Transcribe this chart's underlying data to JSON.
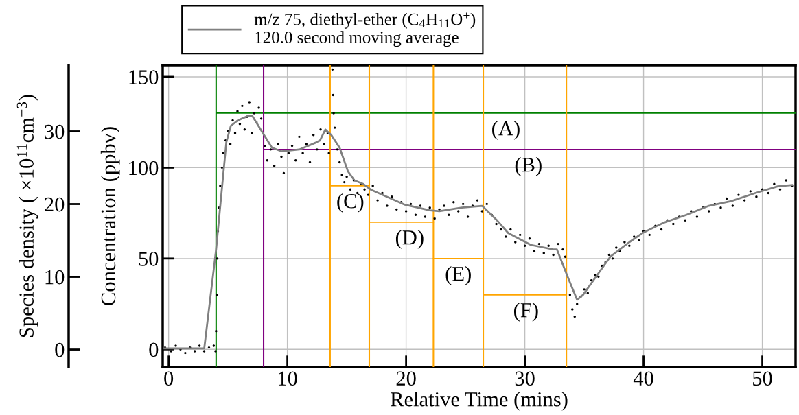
{
  "chart_data": {
    "type": "line",
    "xlabel": "Relative Time (mins)",
    "ylabel": "Concentration (ppbv)",
    "y2label": "Species density ( ×10$^{11}$cm$^{−3}$)",
    "xlim": [
      -0.5,
      52.8
    ],
    "xticks": [
      0,
      10,
      20,
      30,
      40,
      50
    ],
    "ylim": [
      -9.7,
      156.4
    ],
    "yticks": [
      0,
      50,
      100,
      150
    ],
    "y2lim": [
      -2.4,
      39.1
    ],
    "y2ticks": [
      0,
      10,
      20,
      30
    ],
    "grid": true,
    "legend": "top left",
    "series": [
      {
        "type": "scatter",
        "color": "#000000",
        "marker": "circle",
        "x": [
          -0.3,
          0.2,
          0.6,
          1.0,
          1.4,
          1.8,
          2.2,
          2.6,
          3.0,
          3.4,
          3.8,
          3.95,
          4.0,
          4.05,
          4.1,
          4.15,
          4.25,
          4.35,
          4.5,
          4.6,
          4.8,
          5.0,
          5.2,
          5.4,
          5.6,
          5.8,
          6.0,
          6.2,
          6.4,
          6.6,
          6.8,
          7.0,
          7.2,
          7.4,
          7.6,
          7.8,
          8.1,
          8.3,
          8.6,
          8.9,
          9.2,
          9.5,
          9.7,
          10.1,
          10.4,
          10.7,
          11.0,
          11.3,
          11.6,
          11.9,
          12.2,
          12.5,
          12.8,
          13.1,
          13.4,
          13.5,
          13.8,
          13.85,
          13.9,
          14.0,
          14.2,
          14.4,
          14.6,
          14.8,
          15.0,
          15.3,
          15.6,
          15.9,
          16.2,
          16.5,
          16.8,
          17.2,
          17.6,
          18.0,
          18.4,
          18.8,
          19.2,
          19.6,
          20.0,
          20.4,
          20.8,
          21.2,
          21.6,
          22.0,
          22.4,
          22.8,
          23.2,
          23.6,
          24.0,
          24.4,
          24.8,
          25.2,
          25.6,
          26.0,
          26.4,
          26.8,
          27.2,
          27.6,
          28.0,
          28.4,
          28.8,
          29.2,
          29.6,
          30.0,
          30.4,
          30.8,
          31.2,
          31.6,
          32.0,
          32.4,
          32.8,
          33.2,
          33.4,
          33.8,
          34.0,
          34.2,
          34.4,
          34.7,
          35.0,
          35.3,
          35.6,
          35.9,
          36.2,
          36.5,
          36.8,
          37.1,
          37.4,
          37.7,
          38.0,
          38.4,
          38.8,
          39.2,
          39.6,
          40.0,
          40.5,
          41.0,
          41.5,
          42.0,
          42.5,
          43.0,
          43.5,
          44.0,
          44.5,
          45.0,
          45.5,
          46.0,
          46.5,
          47.0,
          47.5,
          48.0,
          48.5,
          49.0,
          49.5,
          50.0,
          50.5,
          51.0,
          51.5,
          52.0,
          52.5
        ],
        "values": [
          1,
          -1,
          2,
          0,
          -2,
          1,
          -1,
          2,
          -1,
          1,
          2,
          -1,
          10,
          30,
          50,
          65,
          78,
          90,
          100,
          108,
          115,
          120,
          113,
          126,
          119,
          131,
          124,
          134,
          121,
          128,
          136,
          119,
          130,
          125,
          133,
          127,
          112,
          104,
          110,
          101,
          113,
          106,
          97,
          108,
          112,
          104,
          117,
          108,
          113,
          103,
          118,
          110,
          121,
          113,
          119,
          108,
          154,
          140,
          130,
          122,
          110,
          103,
          96,
          92,
          95,
          88,
          93,
          86,
          91,
          88,
          85,
          90,
          82,
          86,
          79,
          84,
          77,
          81,
          76,
          80,
          74,
          79,
          73,
          78,
          72,
          77,
          79,
          74,
          81,
          76,
          80,
          73,
          79,
          82,
          76,
          80,
          74,
          69,
          66,
          62,
          66,
          59,
          63,
          57,
          61,
          54,
          58,
          53,
          57,
          52,
          58,
          55,
          51,
          30,
          22,
          18,
          25,
          29,
          33,
          31,
          38,
          41,
          40,
          46,
          48,
          52,
          50,
          56,
          54,
          59,
          57,
          62,
          60,
          65,
          63,
          68,
          66,
          71,
          69,
          73,
          71,
          76,
          73,
          78,
          76,
          80,
          78,
          83,
          79,
          85,
          82,
          87,
          84,
          88,
          86,
          91,
          88,
          93,
          90
        ]
      },
      {
        "name": "m/z 75, diethyl-ether (C$_{4}$H$_{11}$O$^{+}$)\n120.0 second moving average",
        "color": "#808080",
        "x": [
          -0.35,
          3.0,
          4.0,
          4.86,
          5.24,
          5.82,
          6.78,
          7.05,
          7.9,
          8.7,
          9.5,
          11.0,
          12.4,
          12.75,
          13.2,
          13.7,
          14.4,
          15.1,
          15.65,
          16.4,
          17.0,
          19.9,
          22.0,
          22.8,
          24.7,
          26.4,
          27.6,
          28.6,
          30.5,
          32.4,
          32.7,
          33.6,
          34.4,
          34.9,
          36.1,
          37.2,
          38.8,
          39.9,
          41.65,
          43.6,
          45.5,
          47.4,
          49.4,
          51.3,
          52.5
        ],
        "values": [
          0.5,
          0.5,
          55,
          114,
          123,
          126,
          128.7,
          128.5,
          119.4,
          111,
          109,
          110,
          113.8,
          115,
          121,
          118,
          111,
          98,
          93,
          91,
          88,
          79.6,
          76.5,
          76,
          78,
          79,
          71.4,
          64,
          57.5,
          55,
          55,
          40,
          27.3,
          30,
          41,
          51,
          59,
          64,
          69.6,
          74,
          79,
          81.6,
          86,
          89.7,
          90.4
        ]
      },
      {
        "color": "#008000",
        "x": [
          4,
          52.8
        ],
        "values": [
          130,
          130
        ]
      },
      {
        "color": "#800080",
        "x": [
          8,
          52.8
        ],
        "values": [
          110,
          110
        ]
      },
      {
        "color": "#ffa500",
        "x": [
          13.6,
          16.9
        ],
        "values": [
          90,
          90
        ]
      },
      {
        "color": "#ffa500",
        "x": [
          16.9,
          22.3
        ],
        "values": [
          70,
          70
        ]
      },
      {
        "color": "#ffa500",
        "x": [
          22.3,
          26.5
        ],
        "values": [
          50,
          50
        ]
      },
      {
        "color": "#ffa500",
        "x": [
          26.5,
          33.5
        ],
        "values": [
          30,
          30
        ]
      }
    ],
    "ref_lines": [
      {
        "axis": "x",
        "value": 4,
        "color": "#008000"
      },
      {
        "axis": "x",
        "value": 8,
        "color": "#800080"
      },
      {
        "axis": "x",
        "value": 13.6,
        "color": "#ffa500"
      },
      {
        "axis": "x",
        "value": 16.9,
        "color": "#ffa500"
      },
      {
        "axis": "x",
        "value": 22.3,
        "color": "#ffa500"
      },
      {
        "axis": "x",
        "value": 26.5,
        "color": "#ffa500"
      },
      {
        "axis": "x",
        "value": 33.5,
        "color": "#ffa500"
      }
    ],
    "annotations": [
      {
        "text": "(A)",
        "x": 28.4,
        "y": 130
      },
      {
        "text": "(B)",
        "x": 30.3,
        "y": 110
      },
      {
        "text": "(C)",
        "x": 15.3,
        "y": 90
      },
      {
        "text": "(D)",
        "x": 20.3,
        "y": 70
      },
      {
        "text": "(E)",
        "x": 24.4,
        "y": 50
      },
      {
        "text": "(F)",
        "x": 30.1,
        "y": 30
      }
    ]
  }
}
